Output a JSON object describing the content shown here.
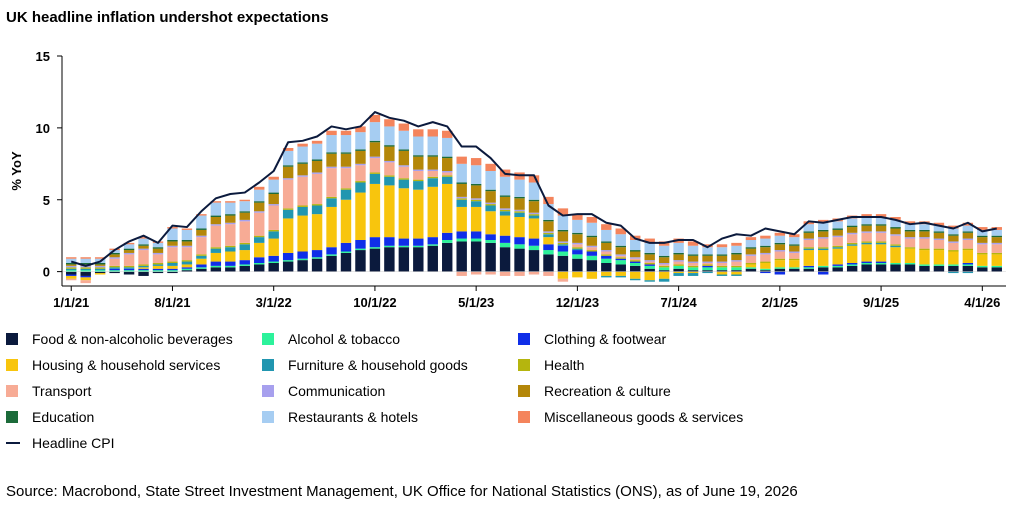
{
  "title": "UK headline inflation undershot expectations",
  "source": "Source: Macrobond, State Street Investment Management, UK Office for National Statistics (ONS), as of June 19, 2026",
  "chart_data": {
    "type": "bar",
    "stacked": true,
    "title": "UK headline inflation undershot expectations",
    "ylabel": "% YoY",
    "xlabel": "",
    "ylim": [
      -1,
      15
    ],
    "yticks": [
      0,
      5,
      10,
      15
    ],
    "grid": false,
    "legend_placement": "bottom",
    "x_start": "1/1/21",
    "n_periods": 65,
    "xtick_labels": [
      "1/1/21",
      "8/1/21",
      "3/1/22",
      "10/1/22",
      "5/1/23",
      "12/1/23",
      "7/1/24",
      "2/1/25",
      "9/1/25",
      "4/1/26"
    ],
    "xtick_index": [
      0,
      7,
      14,
      21,
      28,
      35,
      42,
      49,
      56,
      63
    ],
    "headline_cpi": [
      0.7,
      0.4,
      0.7,
      1.5,
      2.1,
      2.5,
      2.0,
      3.2,
      3.1,
      4.2,
      5.1,
      5.4,
      5.5,
      6.2,
      7.0,
      9.0,
      9.1,
      9.4,
      10.1,
      9.9,
      10.1,
      11.1,
      10.7,
      10.5,
      10.1,
      10.4,
      10.1,
      8.7,
      8.7,
      7.9,
      6.8,
      6.7,
      6.7,
      4.6,
      3.9,
      4.0,
      4.0,
      3.4,
      3.2,
      2.3,
      2.0,
      2.0,
      2.2,
      2.2,
      1.7,
      2.3,
      2.6,
      2.5,
      3.0,
      2.8,
      2.6,
      3.5,
      3.4,
      3.6,
      3.8,
      3.8,
      3.8,
      3.6,
      3.3,
      3.4,
      3.2,
      3.0,
      3.4,
      2.8,
      3.0
    ],
    "series": [
      {
        "name": "Food & non-alcoholic beverages",
        "color": "#0b1a3d",
        "values": [
          -0.2,
          -0.3,
          -0.1,
          -0.1,
          -0.2,
          -0.3,
          -0.1,
          -0.1,
          0.1,
          0.2,
          0.3,
          0.3,
          0.4,
          0.5,
          0.6,
          0.7,
          0.8,
          0.9,
          1.1,
          1.3,
          1.5,
          1.6,
          1.7,
          1.7,
          1.7,
          1.8,
          2.0,
          2.1,
          2.1,
          2.0,
          1.7,
          1.6,
          1.5,
          1.2,
          1.1,
          0.9,
          0.8,
          0.6,
          0.5,
          0.4,
          0.2,
          0.1,
          0.2,
          0.1,
          0.1,
          0.1,
          0.1,
          0.2,
          0.1,
          0.2,
          0.2,
          0.2,
          0.3,
          0.3,
          0.4,
          0.5,
          0.5,
          0.5,
          0.5,
          0.4,
          0.4,
          0.4,
          0.4,
          0.3,
          0.3
        ]
      },
      {
        "name": "Alcohol & tobacco",
        "color": "#2cf29b",
        "values": [
          0.1,
          0.1,
          0.1,
          0.1,
          0.1,
          0.1,
          0.1,
          0.1,
          0.1,
          0.1,
          0.1,
          0.1,
          0.1,
          0.1,
          0.1,
          0.1,
          0.1,
          0.1,
          0.1,
          0.1,
          0.1,
          0.1,
          0.1,
          0.1,
          0.1,
          0.1,
          0.2,
          0.2,
          0.2,
          0.2,
          0.3,
          0.3,
          0.3,
          0.3,
          0.3,
          0.3,
          0.3,
          0.3,
          0.3,
          0.2,
          0.2,
          0.2,
          0.2,
          0.2,
          0.2,
          0.2,
          0.2,
          0.1,
          0.1,
          0.1,
          0.1,
          0.1,
          0.1,
          0.1,
          0.1,
          0.1,
          0.1,
          0.1,
          0.1,
          0.1,
          0.1,
          0.1,
          0.1,
          0.1,
          0.1
        ]
      },
      {
        "name": "Clothing & footwear",
        "color": "#0f2ee8",
        "values": [
          -0.1,
          -0.1,
          0.0,
          0.1,
          0.1,
          0.1,
          0.1,
          0.1,
          0.1,
          0.2,
          0.3,
          0.3,
          0.3,
          0.4,
          0.4,
          0.5,
          0.5,
          0.5,
          0.5,
          0.6,
          0.6,
          0.7,
          0.6,
          0.5,
          0.5,
          0.5,
          0.5,
          0.5,
          0.5,
          0.4,
          0.5,
          0.5,
          0.5,
          0.4,
          0.4,
          0.3,
          0.3,
          0.2,
          0.1,
          0.1,
          0.1,
          0.0,
          0.0,
          0.0,
          0.1,
          0.0,
          0.0,
          0.0,
          -0.1,
          -0.2,
          0.0,
          0.1,
          -0.2,
          0.1,
          0.1,
          0.1,
          0.1,
          0.0,
          0.0,
          0.0,
          0.0,
          0.0,
          0.1,
          0.0,
          0.0
        ]
      },
      {
        "name": "Housing & household services",
        "color": "#f8c50d",
        "values": [
          -0.2,
          -0.2,
          -0.1,
          0.0,
          0.0,
          0.1,
          0.2,
          0.2,
          0.2,
          0.4,
          0.6,
          0.7,
          0.7,
          1.0,
          1.2,
          2.4,
          2.5,
          2.5,
          2.8,
          3.0,
          3.3,
          3.7,
          3.6,
          3.5,
          3.4,
          3.5,
          3.4,
          1.7,
          1.7,
          1.6,
          1.4,
          1.4,
          1.4,
          0.5,
          -0.5,
          -0.4,
          -0.5,
          -0.3,
          -0.3,
          -0.5,
          -0.6,
          -0.5,
          -0.1,
          -0.1,
          0.0,
          -0.2,
          -0.2,
          0.2,
          0.4,
          0.5,
          0.5,
          1.1,
          1.1,
          1.1,
          1.2,
          1.2,
          1.2,
          1.1,
          1.0,
          1.0,
          1.0,
          0.9,
          0.9,
          0.8,
          0.8
        ]
      },
      {
        "name": "Furniture & household goods",
        "color": "#2196b0",
        "values": [
          0.1,
          0.1,
          0.1,
          0.1,
          0.1,
          0.1,
          0.1,
          0.2,
          0.2,
          0.2,
          0.3,
          0.3,
          0.4,
          0.4,
          0.5,
          0.6,
          0.6,
          0.6,
          0.6,
          0.7,
          0.7,
          0.7,
          0.6,
          0.6,
          0.6,
          0.6,
          0.5,
          0.5,
          0.4,
          0.4,
          0.3,
          0.3,
          0.2,
          0.2,
          0.1,
          0.1,
          0.0,
          -0.1,
          -0.1,
          -0.1,
          -0.1,
          -0.2,
          -0.2,
          -0.2,
          -0.1,
          -0.1,
          -0.1,
          0.0,
          0.0,
          0.0,
          0.0,
          0.1,
          0.1,
          0.1,
          0.1,
          0.1,
          0.1,
          0.1,
          0.0,
          0.0,
          0.0,
          -0.1,
          -0.1,
          0.0,
          0.0
        ]
      },
      {
        "name": "Health",
        "color": "#b5b50e",
        "values": [
          0.1,
          0.1,
          0.1,
          0.1,
          0.1,
          0.1,
          0.1,
          0.1,
          0.1,
          0.1,
          0.1,
          0.1,
          0.1,
          0.1,
          0.1,
          0.1,
          0.1,
          0.1,
          0.1,
          0.1,
          0.1,
          0.1,
          0.1,
          0.1,
          0.1,
          0.1,
          0.1,
          0.1,
          0.1,
          0.1,
          0.1,
          0.1,
          0.1,
          0.1,
          0.1,
          0.1,
          0.1,
          0.1,
          0.1,
          0.1,
          0.1,
          0.1,
          0.1,
          0.1,
          0.1,
          0.1,
          0.1,
          0.1,
          0.1,
          0.1,
          0.1,
          0.1,
          0.1,
          0.1,
          0.1,
          0.1,
          0.1,
          0.1,
          0.1,
          0.1,
          0.1,
          0.1,
          0.1,
          0.1,
          0.1
        ]
      },
      {
        "name": "Transport",
        "color": "#f7ab95",
        "values": [
          -0.1,
          -0.2,
          0.0,
          0.5,
          0.8,
          1.0,
          0.6,
          1.0,
          0.9,
          1.2,
          1.5,
          1.5,
          1.5,
          1.6,
          1.7,
          2.0,
          2.0,
          2.1,
          2.0,
          1.4,
          1.1,
          1.0,
          0.9,
          0.8,
          0.6,
          0.4,
          0.2,
          -0.3,
          -0.2,
          -0.2,
          -0.3,
          -0.3,
          -0.2,
          -0.3,
          -0.2,
          0.2,
          0.2,
          0.2,
          0.1,
          0.1,
          0.1,
          0.1,
          0.2,
          0.2,
          0.1,
          0.2,
          0.3,
          0.5,
          0.5,
          0.5,
          0.4,
          0.5,
          0.6,
          0.6,
          0.6,
          0.6,
          0.6,
          0.6,
          0.6,
          0.7,
          0.6,
          0.5,
          0.6,
          0.6,
          0.6
        ]
      },
      {
        "name": "Communication",
        "color": "#a7a0ee",
        "values": [
          0.1,
          0.1,
          0.1,
          0.1,
          0.1,
          0.1,
          0.1,
          0.1,
          0.1,
          0.1,
          0.1,
          0.1,
          0.1,
          0.1,
          0.1,
          0.1,
          0.1,
          0.1,
          0.1,
          0.1,
          0.1,
          0.1,
          0.1,
          0.1,
          0.1,
          0.1,
          0.1,
          0.1,
          0.1,
          0.1,
          0.1,
          0.1,
          0.1,
          0.1,
          0.1,
          0.1,
          0.1,
          0.1,
          0.1,
          0.1,
          0.1,
          0.1,
          0.1,
          0.1,
          0.1,
          0.1,
          0.1,
          0.1,
          0.1,
          0.1,
          0.1,
          0.1,
          0.1,
          0.1,
          0.1,
          0.1,
          0.1,
          0.1,
          0.1,
          0.1,
          0.1,
          0.1,
          0.1,
          0.1,
          0.1
        ]
      },
      {
        "name": "Recreation & culture",
        "color": "#b48709",
        "values": [
          0.1,
          0.1,
          0.1,
          0.2,
          0.2,
          0.2,
          0.3,
          0.3,
          0.3,
          0.4,
          0.5,
          0.5,
          0.5,
          0.6,
          0.7,
          0.8,
          0.8,
          0.8,
          0.9,
          0.9,
          0.9,
          1.0,
          1.0,
          1.0,
          0.9,
          0.9,
          0.9,
          0.9,
          0.9,
          0.8,
          0.8,
          0.8,
          0.8,
          0.7,
          0.7,
          0.6,
          0.6,
          0.5,
          0.5,
          0.4,
          0.4,
          0.4,
          0.4,
          0.4,
          0.4,
          0.4,
          0.4,
          0.4,
          0.4,
          0.4,
          0.4,
          0.4,
          0.4,
          0.4,
          0.4,
          0.4,
          0.4,
          0.4,
          0.4,
          0.4,
          0.4,
          0.4,
          0.4,
          0.4,
          0.4
        ]
      },
      {
        "name": "Education",
        "color": "#1c6b3a",
        "values": [
          0.1,
          0.1,
          0.1,
          0.1,
          0.1,
          0.1,
          0.1,
          0.1,
          0.1,
          0.1,
          0.1,
          0.1,
          0.1,
          0.1,
          0.1,
          0.1,
          0.1,
          0.1,
          0.1,
          0.1,
          0.1,
          0.1,
          0.1,
          0.1,
          0.1,
          0.1,
          0.1,
          0.1,
          0.1,
          0.1,
          0.1,
          0.1,
          0.1,
          0.1,
          0.1,
          0.1,
          0.1,
          0.1,
          0.1,
          0.1,
          0.1,
          0.1,
          0.1,
          0.1,
          0.1,
          0.1,
          0.1,
          0.1,
          0.1,
          0.1,
          0.1,
          0.1,
          0.1,
          0.1,
          0.1,
          0.1,
          0.1,
          0.1,
          0.1,
          0.1,
          0.1,
          0.1,
          0.1,
          0.1,
          0.1
        ]
      },
      {
        "name": "Restaurants & hotels",
        "color": "#a6cdf2",
        "values": [
          0.3,
          0.3,
          0.3,
          0.2,
          0.3,
          0.4,
          0.3,
          0.8,
          0.7,
          0.9,
          0.9,
          0.8,
          0.7,
          0.8,
          0.9,
          1.0,
          1.1,
          1.1,
          1.2,
          1.2,
          1.2,
          1.3,
          1.3,
          1.3,
          1.3,
          1.3,
          1.3,
          1.3,
          1.3,
          1.3,
          1.3,
          1.2,
          1.2,
          1.1,
          1.0,
          0.9,
          0.9,
          0.8,
          0.8,
          0.7,
          0.7,
          0.7,
          0.7,
          0.6,
          0.5,
          0.5,
          0.5,
          0.5,
          0.5,
          0.5,
          0.5,
          0.5,
          0.5,
          0.5,
          0.5,
          0.5,
          0.5,
          0.5,
          0.4,
          0.4,
          0.4,
          0.4,
          0.4,
          0.4,
          0.4
        ]
      },
      {
        "name": "Miscellaneous goods & services",
        "color": "#f4845c",
        "values": [
          0.1,
          0.1,
          0.1,
          0.1,
          0.1,
          0.1,
          0.1,
          0.1,
          0.1,
          0.1,
          0.1,
          0.1,
          0.1,
          0.2,
          0.2,
          0.2,
          0.2,
          0.2,
          0.3,
          0.3,
          0.4,
          0.5,
          0.5,
          0.5,
          0.5,
          0.5,
          0.5,
          0.5,
          0.5,
          0.5,
          0.5,
          0.5,
          0.5,
          0.5,
          0.5,
          0.4,
          0.4,
          0.4,
          0.4,
          0.3,
          0.3,
          0.3,
          0.3,
          0.3,
          0.2,
          0.2,
          0.2,
          0.2,
          0.2,
          0.2,
          0.2,
          0.2,
          0.2,
          0.2,
          0.2,
          0.2,
          0.2,
          0.2,
          0.2,
          0.2,
          0.2,
          0.2,
          0.2,
          0.2,
          0.2
        ]
      }
    ],
    "line_series": {
      "name": "Headline CPI",
      "color": "#0b1a3d"
    }
  }
}
